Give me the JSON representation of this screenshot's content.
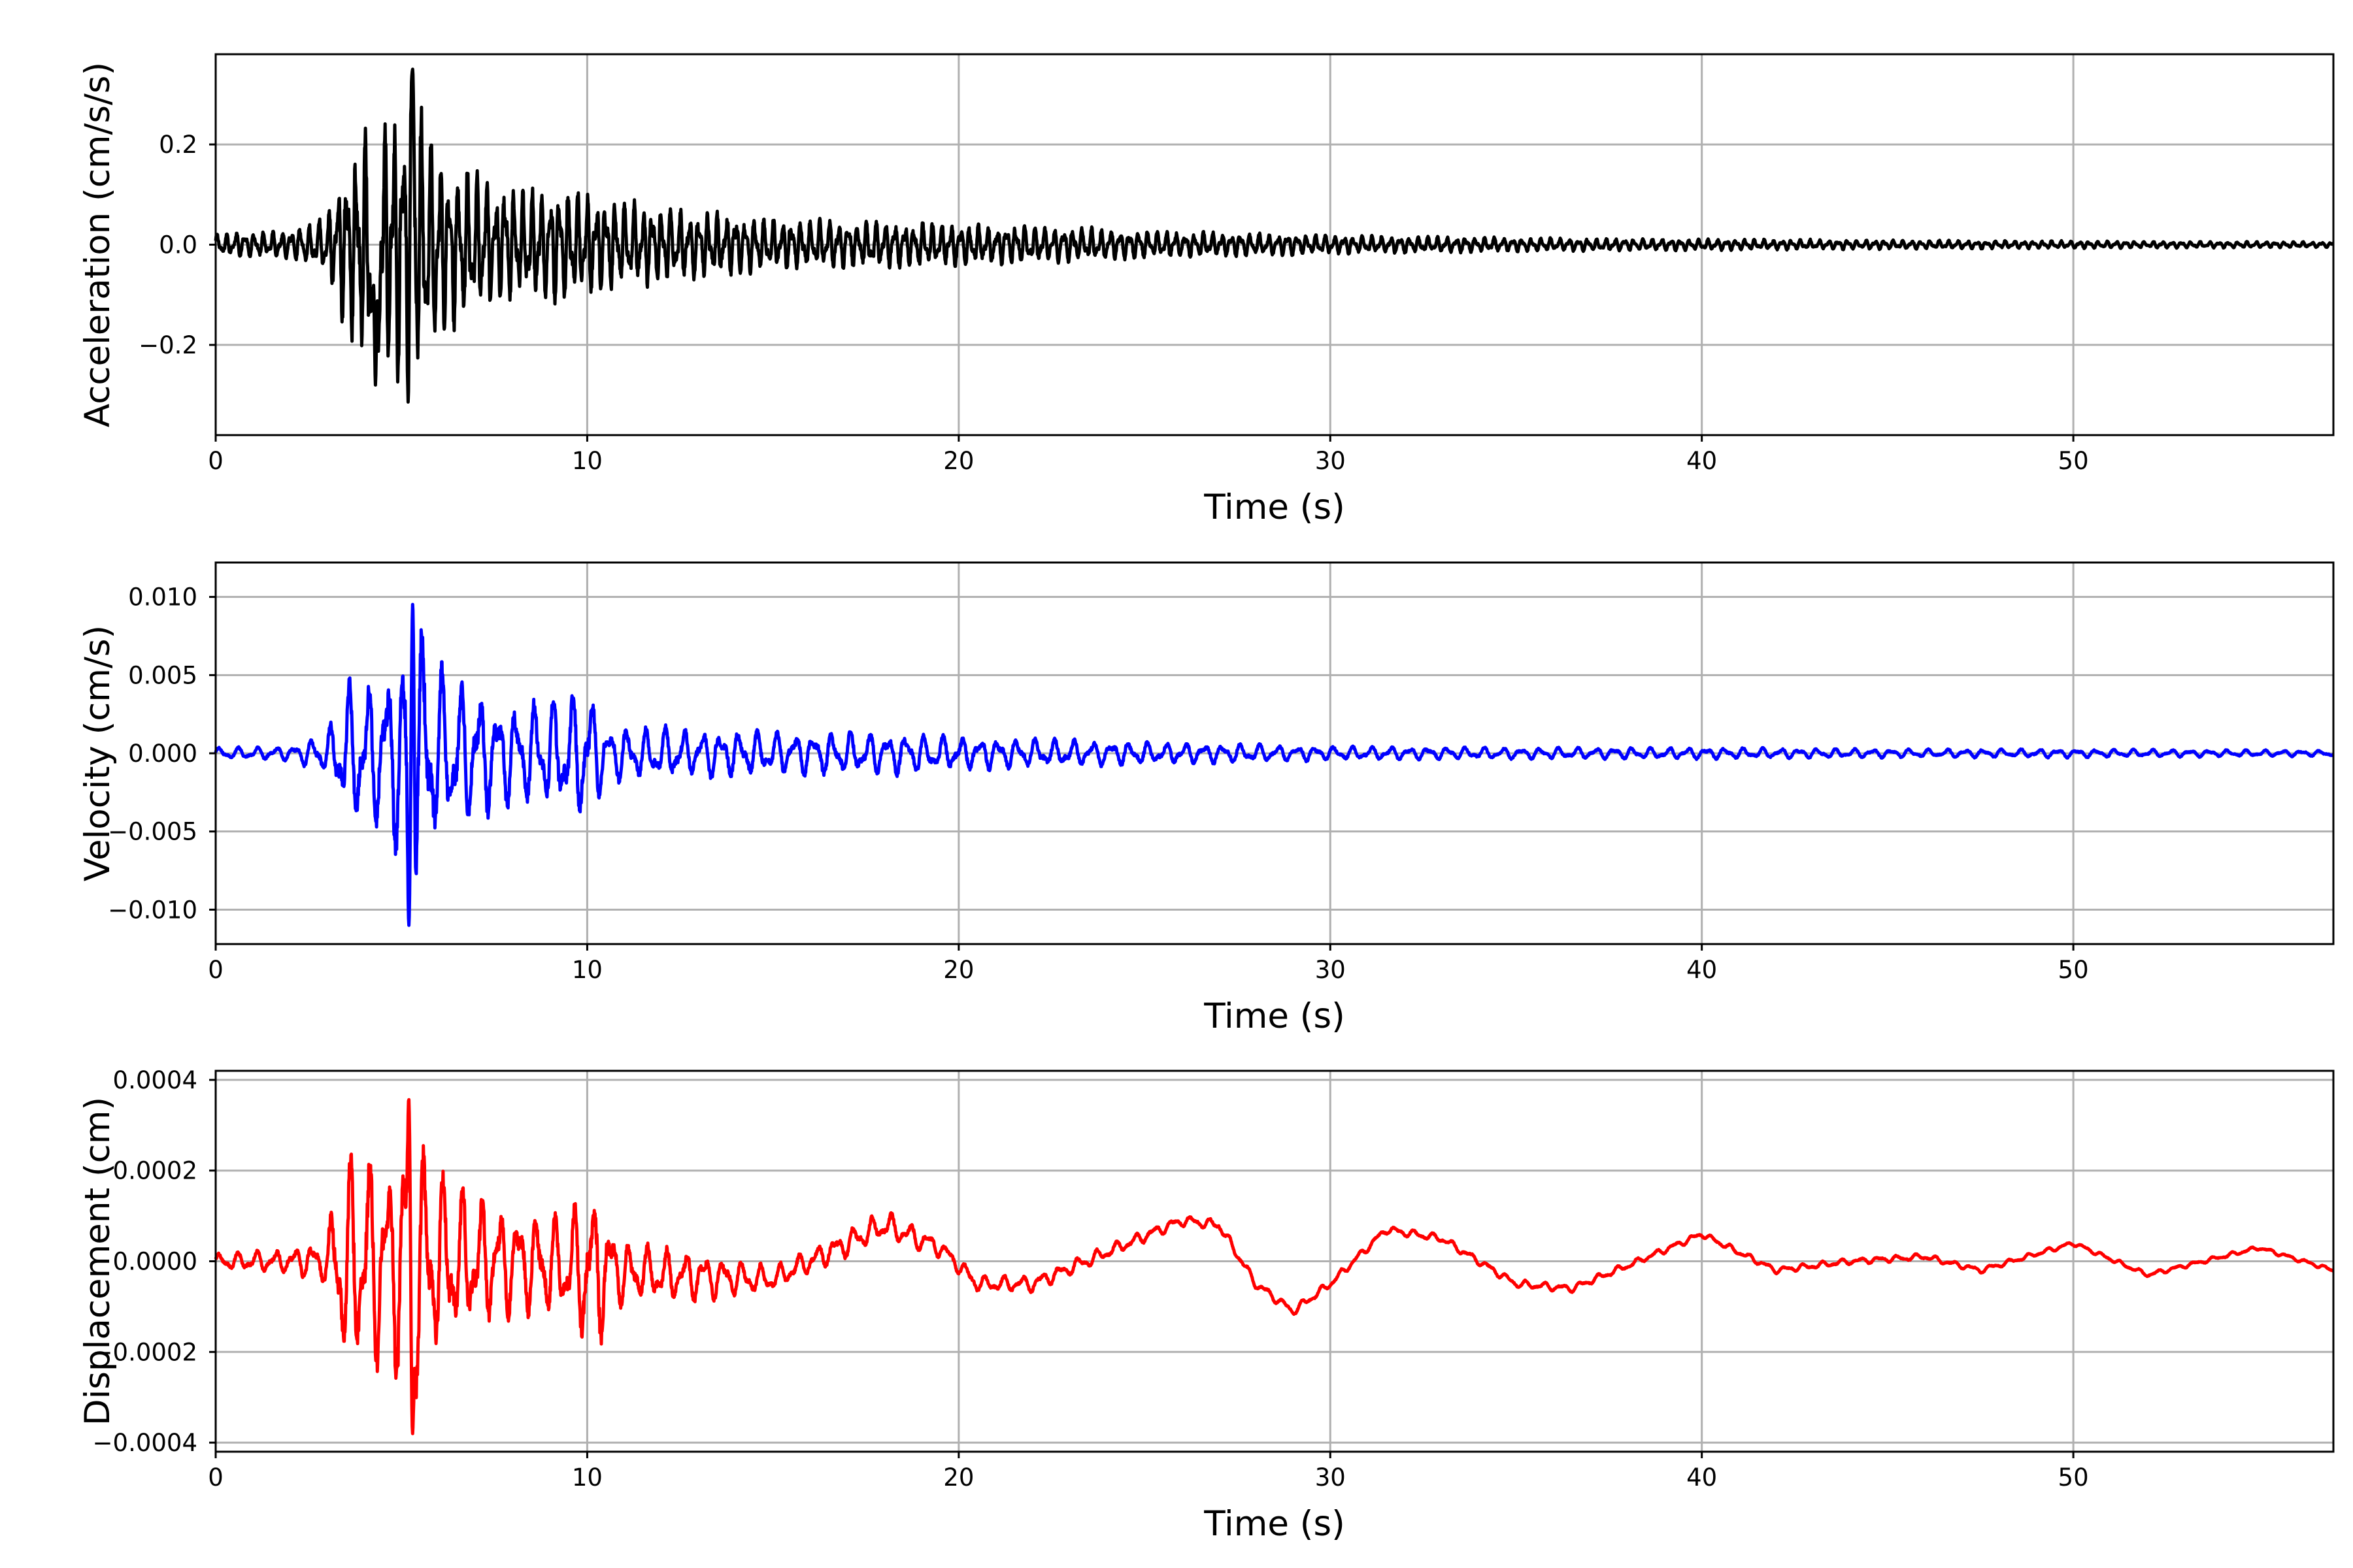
{
  "chart_data": [
    {
      "type": "line",
      "xlabel": "Time (s)",
      "ylabel": "Acceleration (cm/s/s)",
      "xlim": [
        0,
        57
      ],
      "ylim": [
        -0.38,
        0.38
      ],
      "xticks": [
        0,
        10,
        20,
        30,
        40,
        50
      ],
      "xtick_labels": [
        "0",
        "10",
        "20",
        "30",
        "40",
        "50"
      ],
      "yticks": [
        -0.2,
        0.0,
        0.2
      ],
      "ytick_labels": [
        "−0.2",
        "0.0",
        "0.2"
      ],
      "grid": true,
      "color": "#000000",
      "envelope": {
        "t": [
          0,
          2,
          3,
          3.5,
          4,
          5,
          5.3,
          6,
          7,
          8,
          9.5,
          10.5,
          12,
          15,
          18,
          20,
          22,
          25,
          30,
          35,
          40,
          45,
          50,
          57
        ],
        "amp": [
          0.025,
          0.03,
          0.06,
          0.18,
          0.25,
          0.3,
          0.33,
          0.2,
          0.15,
          0.12,
          0.12,
          0.1,
          0.08,
          0.055,
          0.05,
          0.045,
          0.04,
          0.03,
          0.02,
          0.015,
          0.012,
          0.01,
          0.008,
          0.006
        ]
      },
      "dominant_period_s": 0.25,
      "peak_positive": [
        5.3,
        0.35
      ],
      "peak_negative": [
        4.3,
        -0.28
      ]
    },
    {
      "type": "line",
      "xlabel": "Time (s)",
      "ylabel": "Velocity (cm/s)",
      "xlim": [
        0,
        57
      ],
      "ylim": [
        -0.0122,
        0.0122
      ],
      "xticks": [
        0,
        10,
        20,
        30,
        40,
        50
      ],
      "xtick_labels": [
        "0",
        "10",
        "20",
        "30",
        "40",
        "50"
      ],
      "yticks": [
        -0.01,
        -0.005,
        0.0,
        0.005,
        0.01
      ],
      "ytick_labels": [
        "−0.010",
        "−0.005",
        "0.000",
        "0.005",
        "0.010"
      ],
      "grid": true,
      "color": "#0000ff",
      "envelope": {
        "t": [
          0,
          2,
          3,
          3.5,
          4,
          5,
          5.3,
          6,
          7,
          8,
          9.5,
          10,
          10.5,
          12,
          15,
          18,
          20,
          22,
          25,
          30,
          35,
          40,
          45,
          50,
          57
        ],
        "amp": [
          0.0004,
          0.0005,
          0.0015,
          0.005,
          0.005,
          0.007,
          0.0105,
          0.006,
          0.0045,
          0.0035,
          0.004,
          0.005,
          0.002,
          0.0018,
          0.0015,
          0.0015,
          0.0012,
          0.001,
          0.0008,
          0.0005,
          0.0004,
          0.0004,
          0.0003,
          0.0003,
          0.0002
        ]
      },
      "dominant_period_s": 0.5,
      "peak_positive": [
        5.3,
        0.0099
      ],
      "peak_negative": [
        5.2,
        -0.011
      ]
    },
    {
      "type": "line",
      "xlabel": "Time (s)",
      "ylabel": "Displacement (cm)",
      "xlim": [
        0,
        57
      ],
      "ylim": [
        -0.00042,
        0.00042
      ],
      "xticks": [
        0,
        10,
        20,
        30,
        40,
        50
      ],
      "xtick_labels": [
        "0",
        "10",
        "20",
        "30",
        "40",
        "50"
      ],
      "yticks": [
        -0.0004,
        -0.0002,
        0.0,
        0.0002,
        0.0004
      ],
      "ytick_labels": [
        "−0.0004",
        "−0.0002",
        "0.0000",
        "0.0002",
        "0.0004"
      ],
      "grid": true,
      "color": "#ff0000",
      "trend": {
        "t": [
          0,
          3,
          8,
          12,
          15,
          16.5,
          18,
          19.5,
          20.5,
          22,
          24,
          26,
          27,
          28,
          29,
          30,
          31.5,
          33,
          35,
          36.5,
          38,
          40,
          42,
          44,
          46,
          47.5,
          50,
          52,
          55,
          57
        ],
        "d": [
          0,
          0,
          0,
          -3e-05,
          -4e-05,
          2e-05,
          8e-05,
          3e-05,
          -5e-05,
          -5e-05,
          2e-05,
          9e-05,
          8e-05,
          -5e-05,
          -0.00011,
          -5e-05,
          7e-05,
          5e-05,
          -5e-05,
          -6e-05,
          -1e-05,
          6e-05,
          -2e-05,
          0,
          1e-05,
          -2e-05,
          4e-05,
          -3e-05,
          3e-05,
          -2e-05
        ]
      },
      "envelope": {
        "t": [
          0,
          2,
          3,
          3.3,
          4,
          5,
          5.3,
          6,
          7,
          8,
          9.5,
          10,
          11,
          13,
          15,
          18,
          20,
          22,
          25,
          30,
          35,
          40,
          45,
          50,
          57
        ],
        "amp": [
          2e-05,
          3e-05,
          6e-05,
          0.00024,
          0.00026,
          0.00028,
          0.00035,
          0.00022,
          0.00016,
          0.00013,
          0.00012,
          0.00022,
          7e-05,
          6e-05,
          3e-05,
          3.5e-05,
          2e-05,
          2e-05,
          1.5e-05,
          1e-05,
          1e-05,
          8e-06,
          8e-06,
          6e-06,
          5e-06
        ]
      },
      "dominant_period_s": 0.5,
      "peak_positive": [
        5.2,
        0.00037
      ],
      "peak_negative": [
        5.3,
        -0.00038
      ]
    }
  ]
}
